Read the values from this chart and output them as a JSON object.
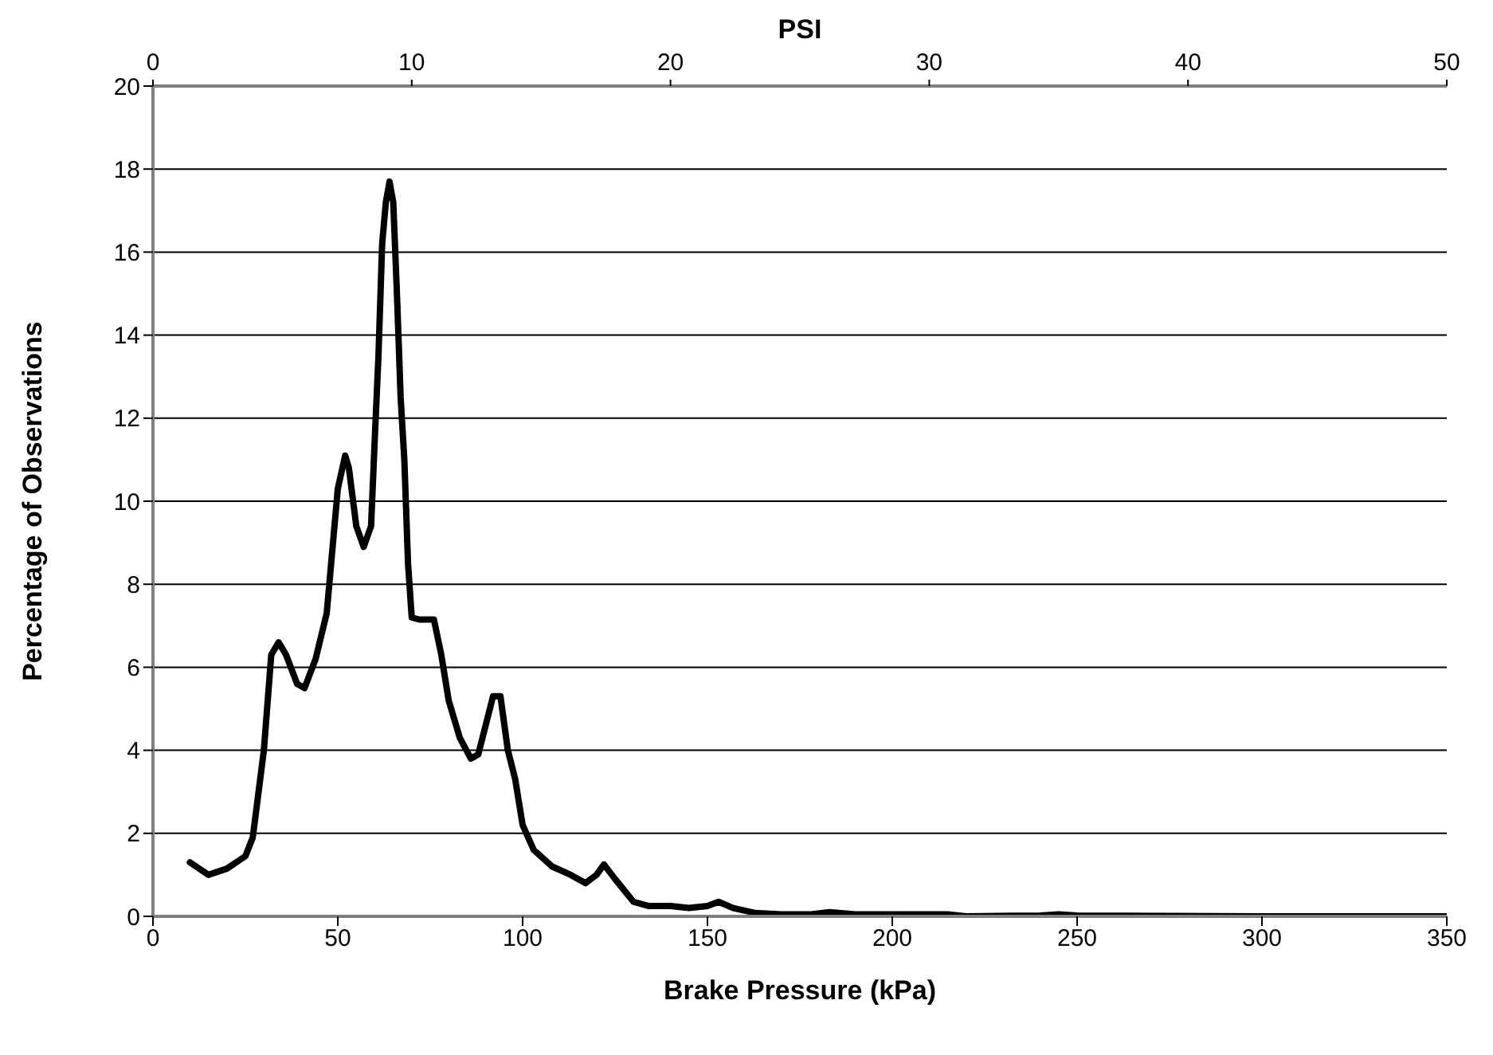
{
  "chart_data": {
    "type": "line",
    "xlabel": "Brake Pressure (kPa)",
    "ylabel": "Percentage of Observations",
    "x2label": "PSI",
    "x": [
      10,
      15,
      20,
      25,
      27,
      30,
      32,
      34,
      36,
      39,
      41,
      44,
      47,
      50,
      52,
      53,
      55,
      57,
      59,
      60,
      61,
      62,
      63,
      64,
      65,
      66,
      67,
      68,
      69,
      70,
      72,
      76,
      78,
      80,
      83,
      86,
      88,
      90,
      92,
      94,
      96,
      98,
      100,
      103,
      108,
      113,
      117,
      120,
      122,
      125,
      130,
      134,
      140,
      145,
      150,
      153,
      157,
      163,
      170,
      178,
      183,
      190,
      200,
      215,
      220,
      240,
      245,
      250,
      300,
      350
    ],
    "series": [
      {
        "color": "#000000",
        "values": [
          1.3,
          1.0,
          1.15,
          1.45,
          1.9,
          4,
          6.3,
          6.6,
          6.3,
          5.6,
          5.5,
          6.2,
          7.3,
          10.3,
          11.1,
          10.8,
          9.4,
          8.9,
          9.4,
          11.5,
          13.5,
          16.2,
          17.2,
          17.7,
          17.2,
          15,
          12.5,
          11,
          8.5,
          7.2,
          7.15,
          7.15,
          6.3,
          5.2,
          4.3,
          3.8,
          3.9,
          4.6,
          5.3,
          5.3,
          4.0,
          3.3,
          2.2,
          1.6,
          1.2,
          1.0,
          0.8,
          1.0,
          1.25,
          0.9,
          0.35,
          0.25,
          0.25,
          0.2,
          0.25,
          0.35,
          0.2,
          0.08,
          0.05,
          0.05,
          0.1,
          0.05,
          0.05,
          0.05,
          0,
          0.02,
          0.05,
          0.02,
          0,
          0
        ]
      }
    ],
    "xlim": [
      0,
      350
    ],
    "xticks": [
      0,
      50,
      100,
      150,
      200,
      250,
      300,
      350
    ],
    "ylim": [
      0,
      20
    ],
    "yticks": [
      0,
      2,
      4,
      6,
      8,
      10,
      12,
      14,
      16,
      18,
      20
    ],
    "x2lim": [
      0,
      50
    ],
    "x2ticks": [
      0,
      10,
      20,
      30,
      40,
      50
    ],
    "grid": "y"
  }
}
